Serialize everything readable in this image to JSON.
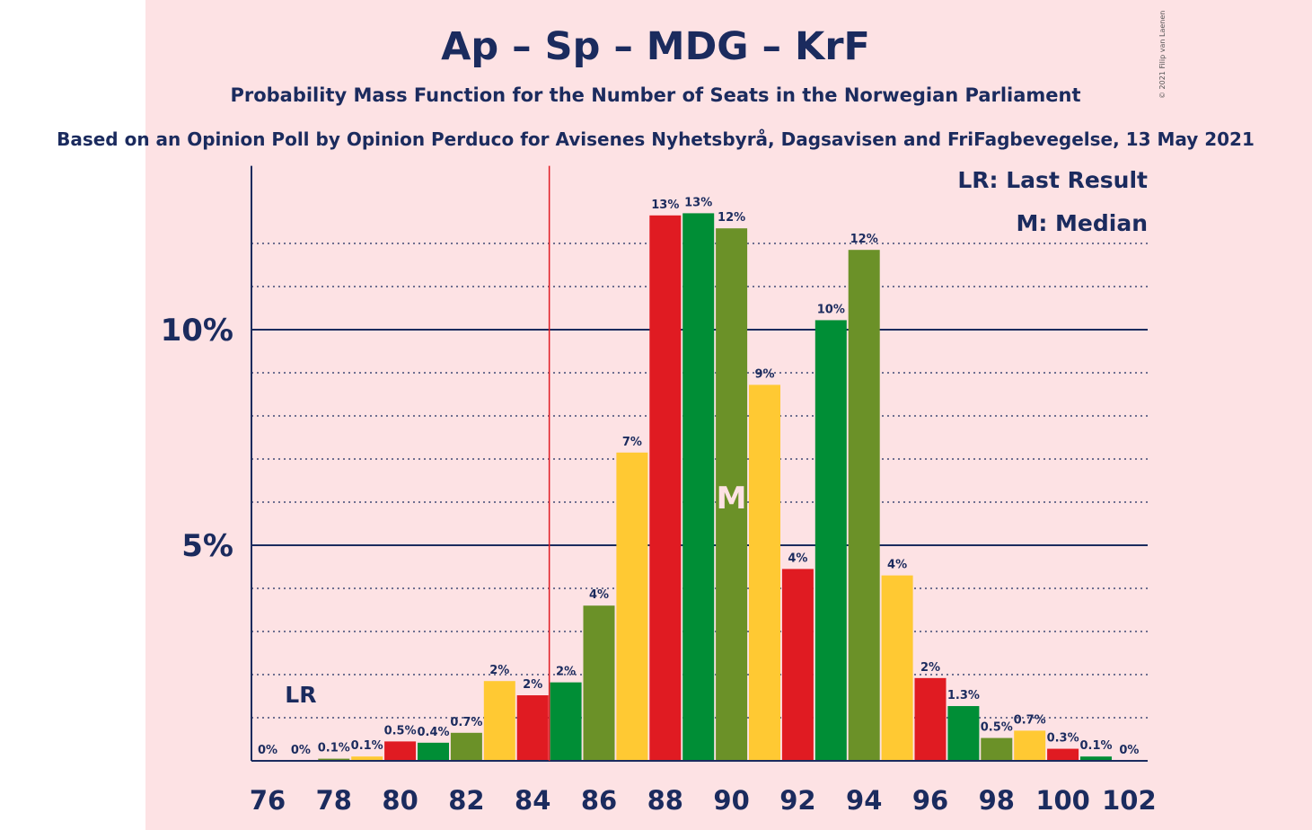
{
  "chart_data": {
    "type": "bar",
    "title": "Ap – Sp – MDG – KrF",
    "subtitle": "Probability Mass Function for the Number of Seats in the Norwegian Parliament",
    "source": "Based on an Opinion Poll by Opinion Perduco for Avisenes Nyhetsbyrå, Dagsavisen and FriFagbevegelse, 13 May 2021",
    "copyright": "© 2021 Filip van Laenen",
    "x": [
      76,
      77,
      78,
      79,
      80,
      81,
      82,
      83,
      84,
      85,
      86,
      87,
      88,
      89,
      90,
      91,
      92,
      93,
      94,
      95,
      96,
      97,
      98,
      99,
      100,
      101,
      102
    ],
    "values": [
      0,
      0,
      0.05,
      0.1,
      0.45,
      0.42,
      0.65,
      1.85,
      1.52,
      1.82,
      3.6,
      7.15,
      12.65,
      12.7,
      12.35,
      8.72,
      4.45,
      10.22,
      11.85,
      4.3,
      1.92,
      1.27,
      0.53,
      0.7,
      0.28,
      0.1,
      0
    ],
    "labels": [
      "0%",
      "0%",
      "0.1%",
      "0.1%",
      "0.5%",
      "0.4%",
      "0.7%",
      "2%",
      "2%",
      "2%",
      "4%",
      "7%",
      "13%",
      "13%",
      "12%",
      "9%",
      "4%",
      "10%",
      "12%",
      "4%",
      "2%",
      "1.3%",
      "0.5%",
      "0.7%",
      "0.3%",
      "0.1%",
      "0%"
    ],
    "xticks": [
      76,
      78,
      80,
      82,
      84,
      86,
      88,
      90,
      92,
      94,
      96,
      98,
      100,
      102
    ],
    "yticks": [
      {
        "value": 5,
        "label": "5%"
      },
      {
        "value": 10,
        "label": "10%"
      }
    ],
    "ylim": [
      0,
      13.8
    ],
    "last_result": 77,
    "last_result_label": "LR",
    "majority_line": 84.5,
    "median": 90,
    "median_label": "M",
    "legend": [
      "LR: Last Result",
      "M: Median"
    ],
    "colors": {
      "red": "#e01b22",
      "green": "#008e36",
      "olive": "#6b9128",
      "yellow": "#ffc933",
      "majority": "#e01b22",
      "text": "#1b2b5e",
      "median_text": "#fde2e4"
    }
  }
}
